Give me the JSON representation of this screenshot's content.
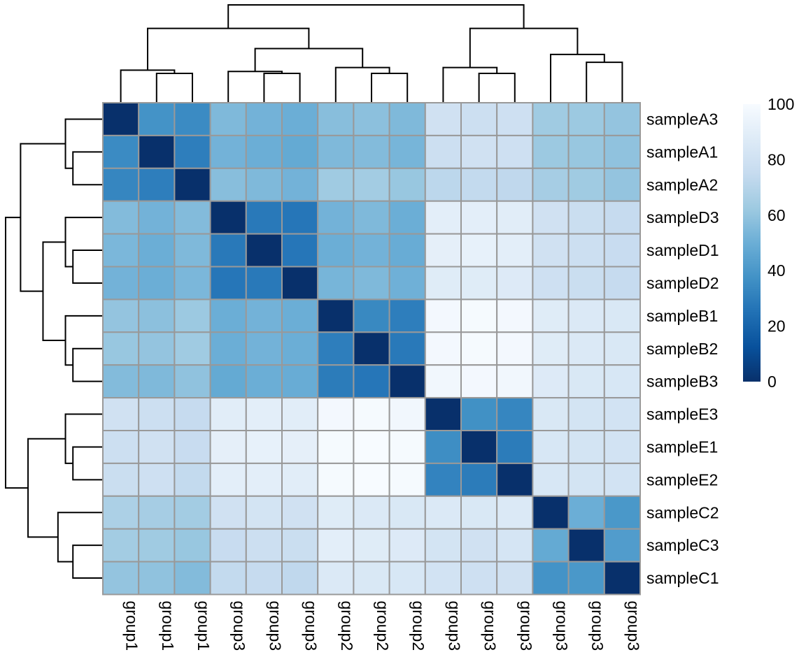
{
  "chart_data": {
    "type": "heatmap",
    "title": "",
    "row_labels": [
      "sampleA3",
      "sampleA1",
      "sampleA2",
      "sampleD3",
      "sampleD1",
      "sampleD2",
      "sampleB1",
      "sampleB2",
      "sampleB3",
      "sampleE3",
      "sampleE1",
      "sampleE2",
      "sampleC2",
      "sampleC3",
      "sampleC1"
    ],
    "col_labels": [
      "group1",
      "group1",
      "group1",
      "group3",
      "group3",
      "group3",
      "group2",
      "group2",
      "group2",
      "group3",
      "group3",
      "group3",
      "group3",
      "group3",
      "group3"
    ],
    "values": [
      [
        0,
        38,
        35,
        55,
        52,
        50,
        57,
        58,
        55,
        80,
        78,
        79,
        63,
        62,
        60
      ],
      [
        35,
        0,
        30,
        52,
        50,
        48,
        55,
        56,
        53,
        78,
        80,
        79,
        62,
        61,
        59
      ],
      [
        33,
        30,
        0,
        57,
        55,
        52,
        63,
        64,
        61,
        72,
        74,
        73,
        65,
        63,
        60
      ],
      [
        56,
        52,
        56,
        0,
        28,
        27,
        52,
        55,
        50,
        90,
        90,
        89,
        80,
        77,
        75
      ],
      [
        54,
        50,
        55,
        28,
        0,
        27,
        50,
        52,
        49,
        91,
        92,
        90,
        80,
        78,
        76
      ],
      [
        52,
        50,
        54,
        27,
        28,
        0,
        53,
        55,
        51,
        88,
        88,
        87,
        79,
        77,
        75
      ],
      [
        60,
        58,
        62,
        50,
        52,
        50,
        0,
        34,
        30,
        98,
        99,
        98,
        88,
        86,
        85
      ],
      [
        61,
        60,
        63,
        50,
        52,
        50,
        30,
        0,
        28,
        98,
        99,
        98,
        88,
        86,
        85
      ],
      [
        56,
        55,
        59,
        48,
        50,
        49,
        29,
        27,
        0,
        97,
        98,
        97,
        87,
        85,
        84
      ],
      [
        80,
        78,
        75,
        89,
        90,
        89,
        98,
        99,
        97,
        0,
        37,
        33,
        85,
        82,
        81
      ],
      [
        78,
        80,
        76,
        91,
        92,
        91,
        99,
        100,
        99,
        36,
        0,
        29,
        84,
        82,
        81
      ],
      [
        77,
        79,
        74,
        90,
        90,
        89,
        99,
        100,
        99,
        32,
        29,
        0,
        84,
        82,
        81
      ],
      [
        67,
        65,
        64,
        80,
        82,
        80,
        88,
        86,
        85,
        86,
        85,
        86,
        0,
        50,
        40
      ],
      [
        64,
        63,
        61,
        76,
        78,
        77,
        90,
        88,
        87,
        82,
        80,
        83,
        48,
        0,
        42
      ],
      [
        60,
        59,
        56,
        74,
        75,
        73,
        86,
        85,
        84,
        81,
        79,
        80,
        38,
        40,
        0
      ]
    ],
    "colorbar": {
      "min": 0,
      "max": 100,
      "ticks": [
        0,
        20,
        40,
        60,
        80,
        100
      ],
      "tick_labels": [
        "0",
        "20",
        "40",
        "60",
        "80",
        "100"
      ]
    },
    "palette": [
      "#08306B",
      "#08519C",
      "#2171B5",
      "#4292C6",
      "#6BAED6",
      "#9ECAE1",
      "#C6DBEF",
      "#DEEBF7",
      "#F7FBFF"
    ],
    "row_dendrogram": {
      "merges": [
        [
          1,
          2
        ],
        [
          0,
          "n0"
        ],
        [
          4,
          5
        ],
        [
          3,
          "n2"
        ],
        [
          7,
          8
        ],
        [
          6,
          "n4"
        ],
        [
          "n3",
          "n5"
        ],
        [
          "n1",
          "n6"
        ],
        [
          10,
          11
        ],
        [
          9,
          "n8"
        ],
        [
          13,
          14
        ],
        [
          12,
          "n10"
        ],
        [
          "n9",
          "n11"
        ],
        [
          "n7",
          "n12"
        ]
      ],
      "heights": [
        4,
        5,
        4,
        5,
        4,
        5,
        8,
        11,
        4,
        5,
        4,
        6,
        10,
        13
      ]
    },
    "col_dendrogram": {
      "merges": [
        [
          1,
          2
        ],
        [
          0,
          "n0"
        ],
        [
          4,
          5
        ],
        [
          3,
          "n2"
        ],
        [
          7,
          8
        ],
        [
          6,
          "n4"
        ],
        [
          "n3",
          "n5"
        ],
        [
          "n1",
          "n6"
        ],
        [
          10,
          11
        ],
        [
          9,
          "n8"
        ],
        [
          13,
          14
        ],
        [
          12,
          "n10"
        ],
        [
          "n9",
          "n11"
        ],
        [
          "n7",
          "n12"
        ]
      ],
      "heights": [
        4.5,
        5,
        4.5,
        4.8,
        4.5,
        5.4,
        8.3,
        11.4,
        4.5,
        5.4,
        6.2,
        7.4,
        11.4,
        15
      ]
    }
  }
}
